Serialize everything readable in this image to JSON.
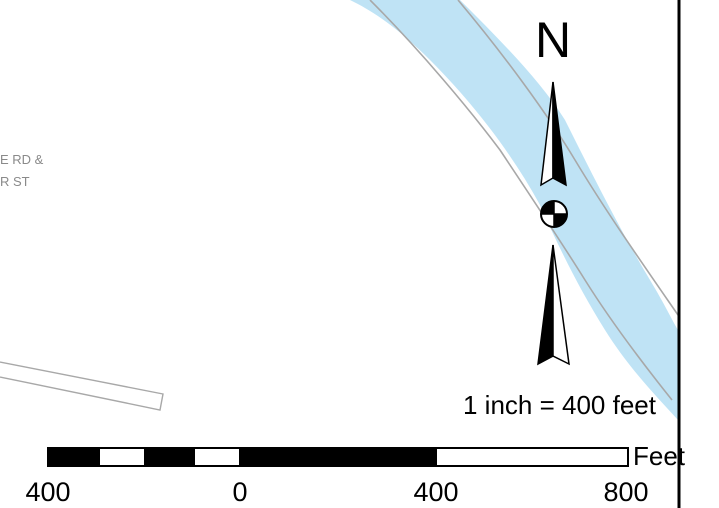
{
  "map": {
    "road_label": {
      "line1": "E RD &",
      "line2": "R ST"
    },
    "north_arrow": {
      "letter": "N"
    },
    "scale_text": "1 inch = 400 feet",
    "scale_bar": {
      "units": "Feet",
      "ticks": [
        "400",
        "0",
        "400",
        "800"
      ]
    },
    "colors": {
      "water": "#bfe3f5",
      "road_outline": "#a8a8a8",
      "frame": "#000000"
    }
  }
}
